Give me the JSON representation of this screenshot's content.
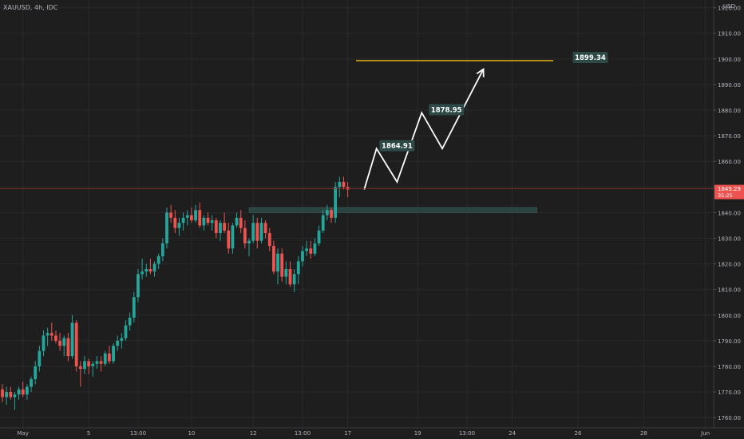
{
  "header": {
    "symbol": "XAUUSD, 4h, IDC",
    "currency": "USD"
  },
  "chart_data": {
    "type": "candlestick",
    "title": "XAUUSD, 4h, IDC",
    "ylim": [
      1756,
      1923
    ],
    "y_ticks": [
      1760,
      1770,
      1780,
      1790,
      1800,
      1810,
      1820,
      1830,
      1840,
      1850,
      1860,
      1870,
      1880,
      1890,
      1900,
      1910,
      1920
    ],
    "y_tick_labels": [
      "1760.00",
      "1770.00",
      "1780.00",
      "1790.00",
      "1800.00",
      "1810.00",
      "1820.00",
      "1830.00",
      "1840.00",
      "1850.00",
      "1860.00",
      "1870.00",
      "1880.00",
      "1890.00",
      "1900.00",
      "1910.00",
      "1920.00"
    ],
    "x_ticks": [
      {
        "bar": 5,
        "label": "May"
      },
      {
        "bar": 21,
        "label": "5"
      },
      {
        "bar": 33,
        "label": "13:00"
      },
      {
        "bar": 46,
        "label": "10"
      },
      {
        "bar": 61,
        "label": "12"
      },
      {
        "bar": 73,
        "label": "13:00"
      },
      {
        "bar": 84,
        "label": "17"
      },
      {
        "bar": 101,
        "label": "19"
      },
      {
        "bar": 113,
        "label": "13:00"
      },
      {
        "bar": 124,
        "label": "24"
      },
      {
        "bar": 140,
        "label": "26"
      },
      {
        "bar": 156,
        "label": "28"
      },
      {
        "bar": 171,
        "label": "Jun"
      }
    ],
    "grid": true,
    "current_price": {
      "value": 1849.29,
      "label": "1849.29",
      "countdown": "35:25"
    },
    "candles": [
      [
        1771,
        1773,
        1766,
        1768
      ],
      [
        1768,
        1772,
        1765,
        1770
      ],
      [
        1770,
        1772,
        1767,
        1768
      ],
      [
        1768,
        1770,
        1763,
        1769
      ],
      [
        1769,
        1772,
        1767,
        1771
      ],
      [
        1771,
        1774,
        1768,
        1769
      ],
      [
        1769,
        1773,
        1767,
        1772
      ],
      [
        1772,
        1776,
        1770,
        1775
      ],
      [
        1775,
        1782,
        1773,
        1780
      ],
      [
        1780,
        1788,
        1778,
        1786
      ],
      [
        1786,
        1794,
        1784,
        1792
      ],
      [
        1792,
        1795,
        1788,
        1793
      ],
      [
        1793,
        1797,
        1790,
        1792
      ],
      [
        1792,
        1794,
        1789,
        1790
      ],
      [
        1790,
        1793,
        1786,
        1788
      ],
      [
        1788,
        1792,
        1784,
        1791
      ],
      [
        1791,
        1793,
        1782,
        1784
      ],
      [
        1784,
        1800,
        1783,
        1797
      ],
      [
        1797,
        1798,
        1778,
        1780
      ],
      [
        1780,
        1782,
        1772,
        1779
      ],
      [
        1779,
        1784,
        1777,
        1782
      ],
      [
        1782,
        1783,
        1777,
        1780
      ],
      [
        1780,
        1782,
        1776,
        1781
      ],
      [
        1781,
        1784,
        1779,
        1782
      ],
      [
        1782,
        1784,
        1778,
        1781
      ],
      [
        1781,
        1786,
        1780,
        1785
      ],
      [
        1785,
        1788,
        1781,
        1782
      ],
      [
        1782,
        1789,
        1781,
        1788
      ],
      [
        1788,
        1792,
        1786,
        1790
      ],
      [
        1790,
        1793,
        1787,
        1791
      ],
      [
        1791,
        1798,
        1790,
        1796
      ],
      [
        1796,
        1801,
        1794,
        1799
      ],
      [
        1799,
        1809,
        1797,
        1807
      ],
      [
        1807,
        1818,
        1805,
        1816
      ],
      [
        1816,
        1822,
        1814,
        1817
      ],
      [
        1817,
        1820,
        1815,
        1818
      ],
      [
        1818,
        1822,
        1816,
        1817
      ],
      [
        1817,
        1821,
        1815,
        1820
      ],
      [
        1820,
        1824,
        1818,
        1823
      ],
      [
        1823,
        1830,
        1821,
        1828
      ],
      [
        1828,
        1842,
        1826,
        1840
      ],
      [
        1840,
        1843,
        1836,
        1838
      ],
      [
        1838,
        1841,
        1832,
        1834
      ],
      [
        1834,
        1838,
        1831,
        1836
      ],
      [
        1836,
        1840,
        1833,
        1838
      ],
      [
        1838,
        1841,
        1835,
        1839
      ],
      [
        1839,
        1842,
        1836,
        1837
      ],
      [
        1837,
        1843,
        1836,
        1841
      ],
      [
        1841,
        1844,
        1834,
        1835
      ],
      [
        1835,
        1839,
        1833,
        1838
      ],
      [
        1838,
        1840,
        1835,
        1836
      ],
      [
        1836,
        1839,
        1833,
        1837
      ],
      [
        1837,
        1838,
        1830,
        1832
      ],
      [
        1832,
        1837,
        1829,
        1836
      ],
      [
        1836,
        1840,
        1832,
        1833
      ],
      [
        1833,
        1836,
        1824,
        1826
      ],
      [
        1826,
        1836,
        1824,
        1835
      ],
      [
        1835,
        1840,
        1834,
        1838
      ],
      [
        1838,
        1841,
        1832,
        1834
      ],
      [
        1834,
        1837,
        1826,
        1828
      ],
      [
        1828,
        1830,
        1823,
        1829
      ],
      [
        1829,
        1839,
        1828,
        1836
      ],
      [
        1836,
        1838,
        1826,
        1829
      ],
      [
        1829,
        1838,
        1828,
        1836
      ],
      [
        1836,
        1837,
        1830,
        1832
      ],
      [
        1832,
        1834,
        1825,
        1827
      ],
      [
        1827,
        1829,
        1816,
        1817
      ],
      [
        1817,
        1826,
        1812,
        1824
      ],
      [
        1824,
        1826,
        1813,
        1815
      ],
      [
        1815,
        1821,
        1812,
        1818
      ],
      [
        1818,
        1821,
        1811,
        1812
      ],
      [
        1812,
        1818,
        1809,
        1816
      ],
      [
        1816,
        1823,
        1812,
        1821
      ],
      [
        1821,
        1827,
        1819,
        1825
      ],
      [
        1825,
        1829,
        1823,
        1826
      ],
      [
        1826,
        1829,
        1822,
        1824
      ],
      [
        1824,
        1830,
        1823,
        1828
      ],
      [
        1828,
        1835,
        1827,
        1833
      ],
      [
        1833,
        1841,
        1832,
        1839
      ],
      [
        1839,
        1843,
        1837,
        1841
      ],
      [
        1841,
        1842,
        1836,
        1838
      ],
      [
        1838,
        1852,
        1836,
        1850
      ],
      [
        1850,
        1854,
        1846,
        1852
      ],
      [
        1852,
        1854,
        1849,
        1850
      ],
      [
        1850,
        1852,
        1846,
        1849
      ]
    ],
    "annotations": [
      {
        "type": "zone",
        "from_bar": 60,
        "to_bar": 130,
        "y0": 1840,
        "y1": 1842,
        "color": "#2e4a46"
      },
      {
        "type": "hline",
        "from_bar": 86,
        "to_bar": 134,
        "y": 1899.34,
        "color": "#d4a017"
      },
      {
        "type": "path",
        "color": "#ffffff",
        "points": [
          [
            88,
            1849
          ],
          [
            91,
            1865
          ],
          [
            96,
            1852
          ],
          [
            102,
            1879
          ],
          [
            107,
            1865
          ],
          [
            117,
            1896
          ]
        ]
      },
      {
        "type": "label",
        "bar": 96,
        "y": 1864.91,
        "text": "1864.91"
      },
      {
        "type": "label",
        "bar": 108,
        "y": 1878.95,
        "text": "1878.95"
      },
      {
        "type": "label",
        "bar": 143,
        "y": 1899.34,
        "text": "1899.34"
      }
    ],
    "colors": {
      "up": "#26a69a",
      "down": "#ef5350",
      "background": "#1e1e1e",
      "grid": "#2a2a2a",
      "axis_text": "#b2b5be",
      "label_bg": "#2e4a46"
    }
  }
}
